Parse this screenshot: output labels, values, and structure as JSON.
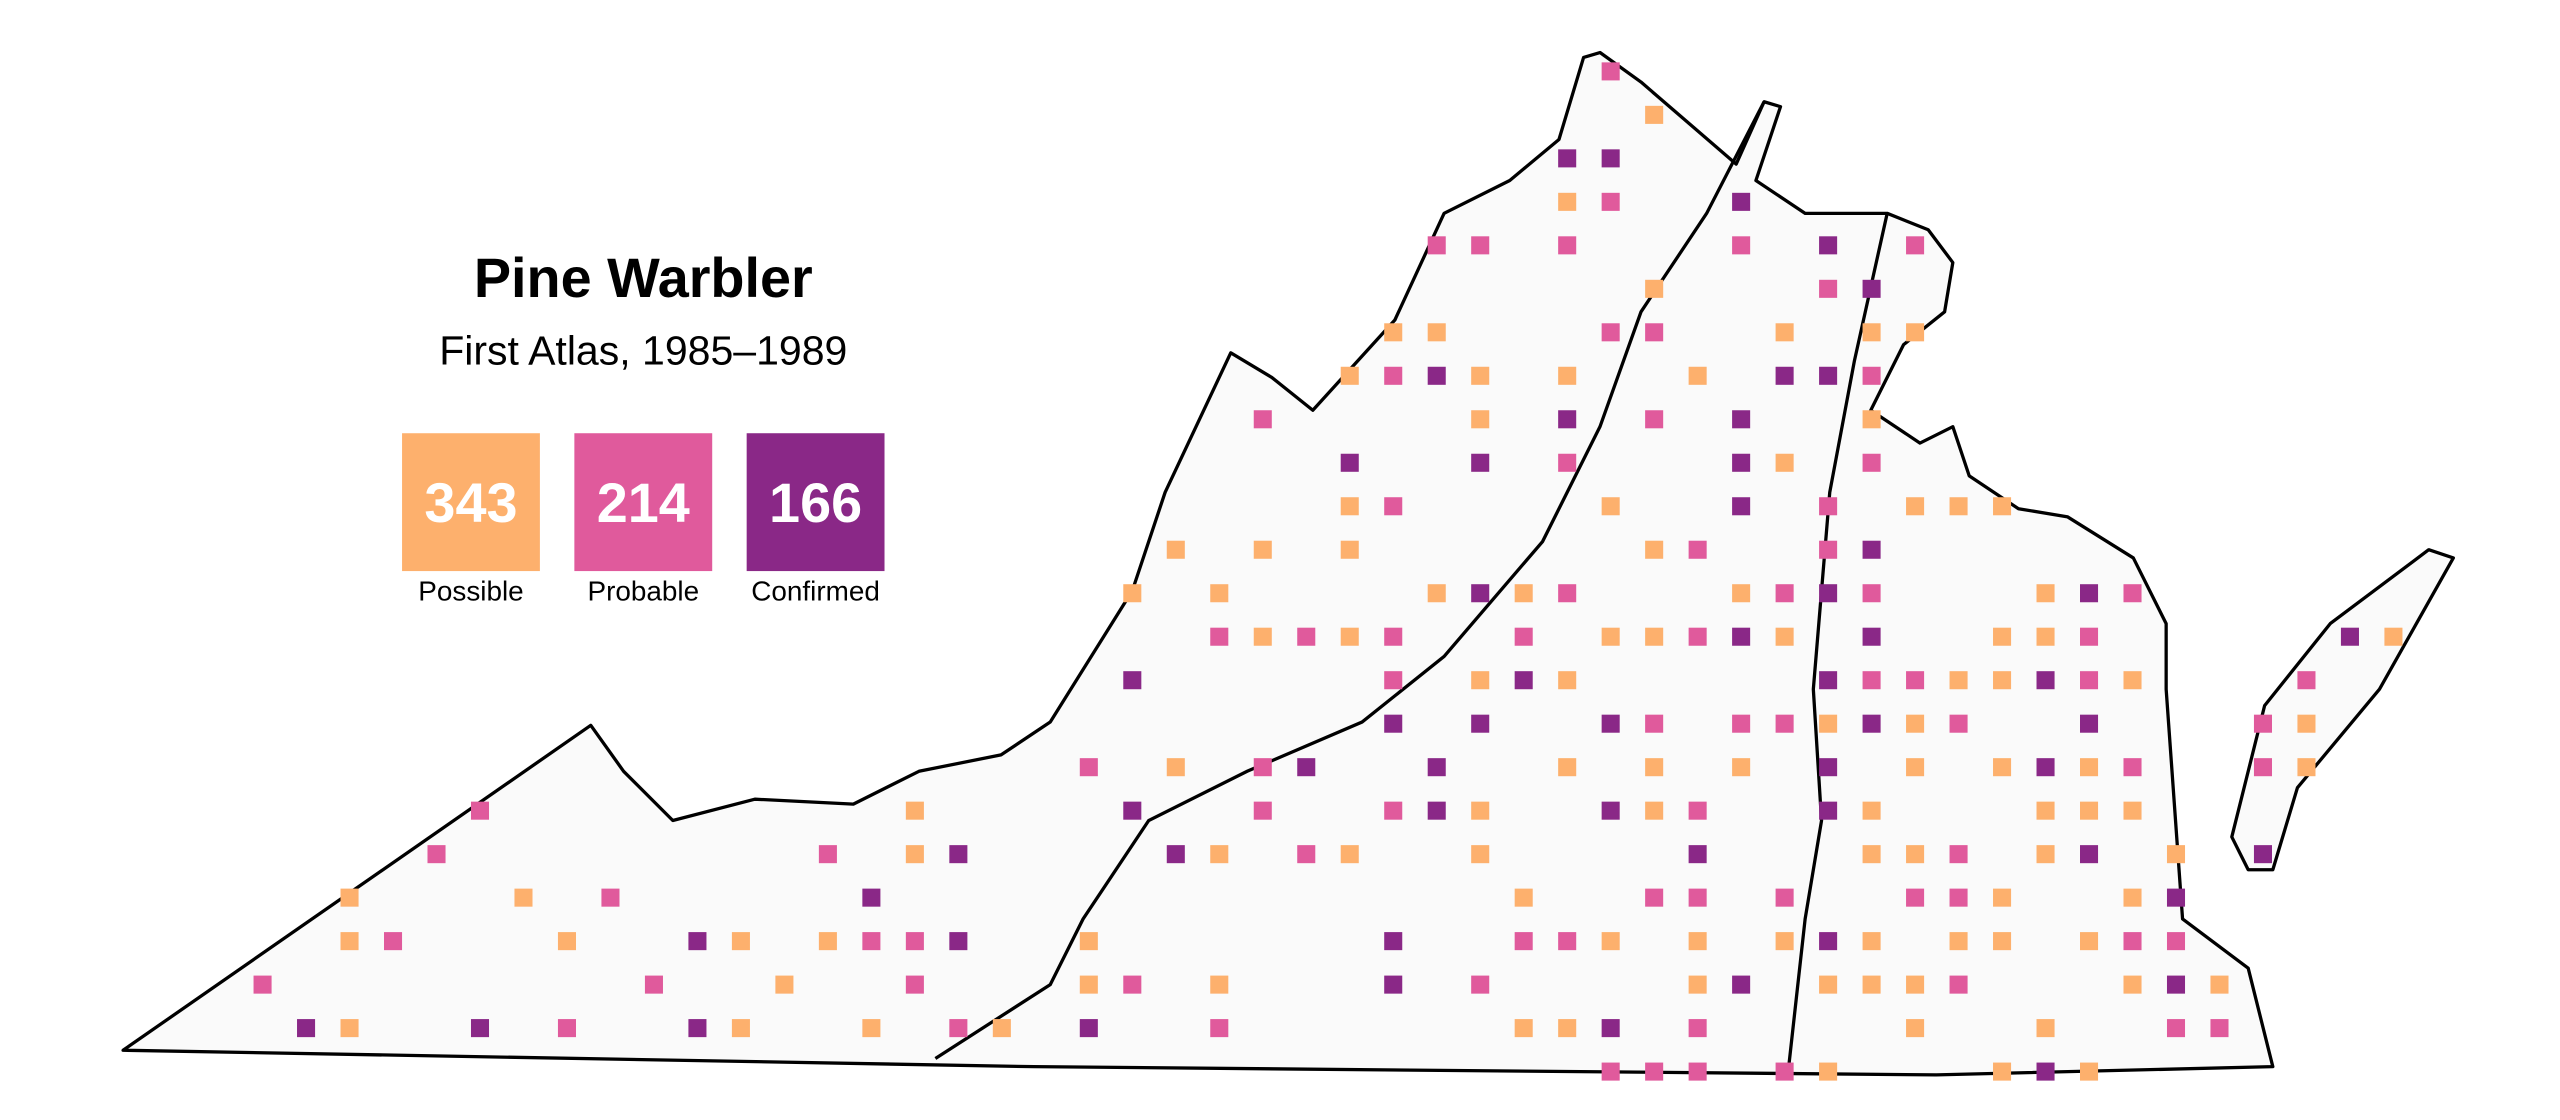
{
  "title": "Pine Warbler",
  "subtitle": "First Atlas, 1985–1989",
  "legend": [
    {
      "count": 343,
      "label": "Possible",
      "color": "#fdb06d"
    },
    {
      "count": 214,
      "label": "Probable",
      "color": "#e05a9c"
    },
    {
      "count": 166,
      "label": "Confirmed",
      "color": "#8a2887"
    }
  ]
}
